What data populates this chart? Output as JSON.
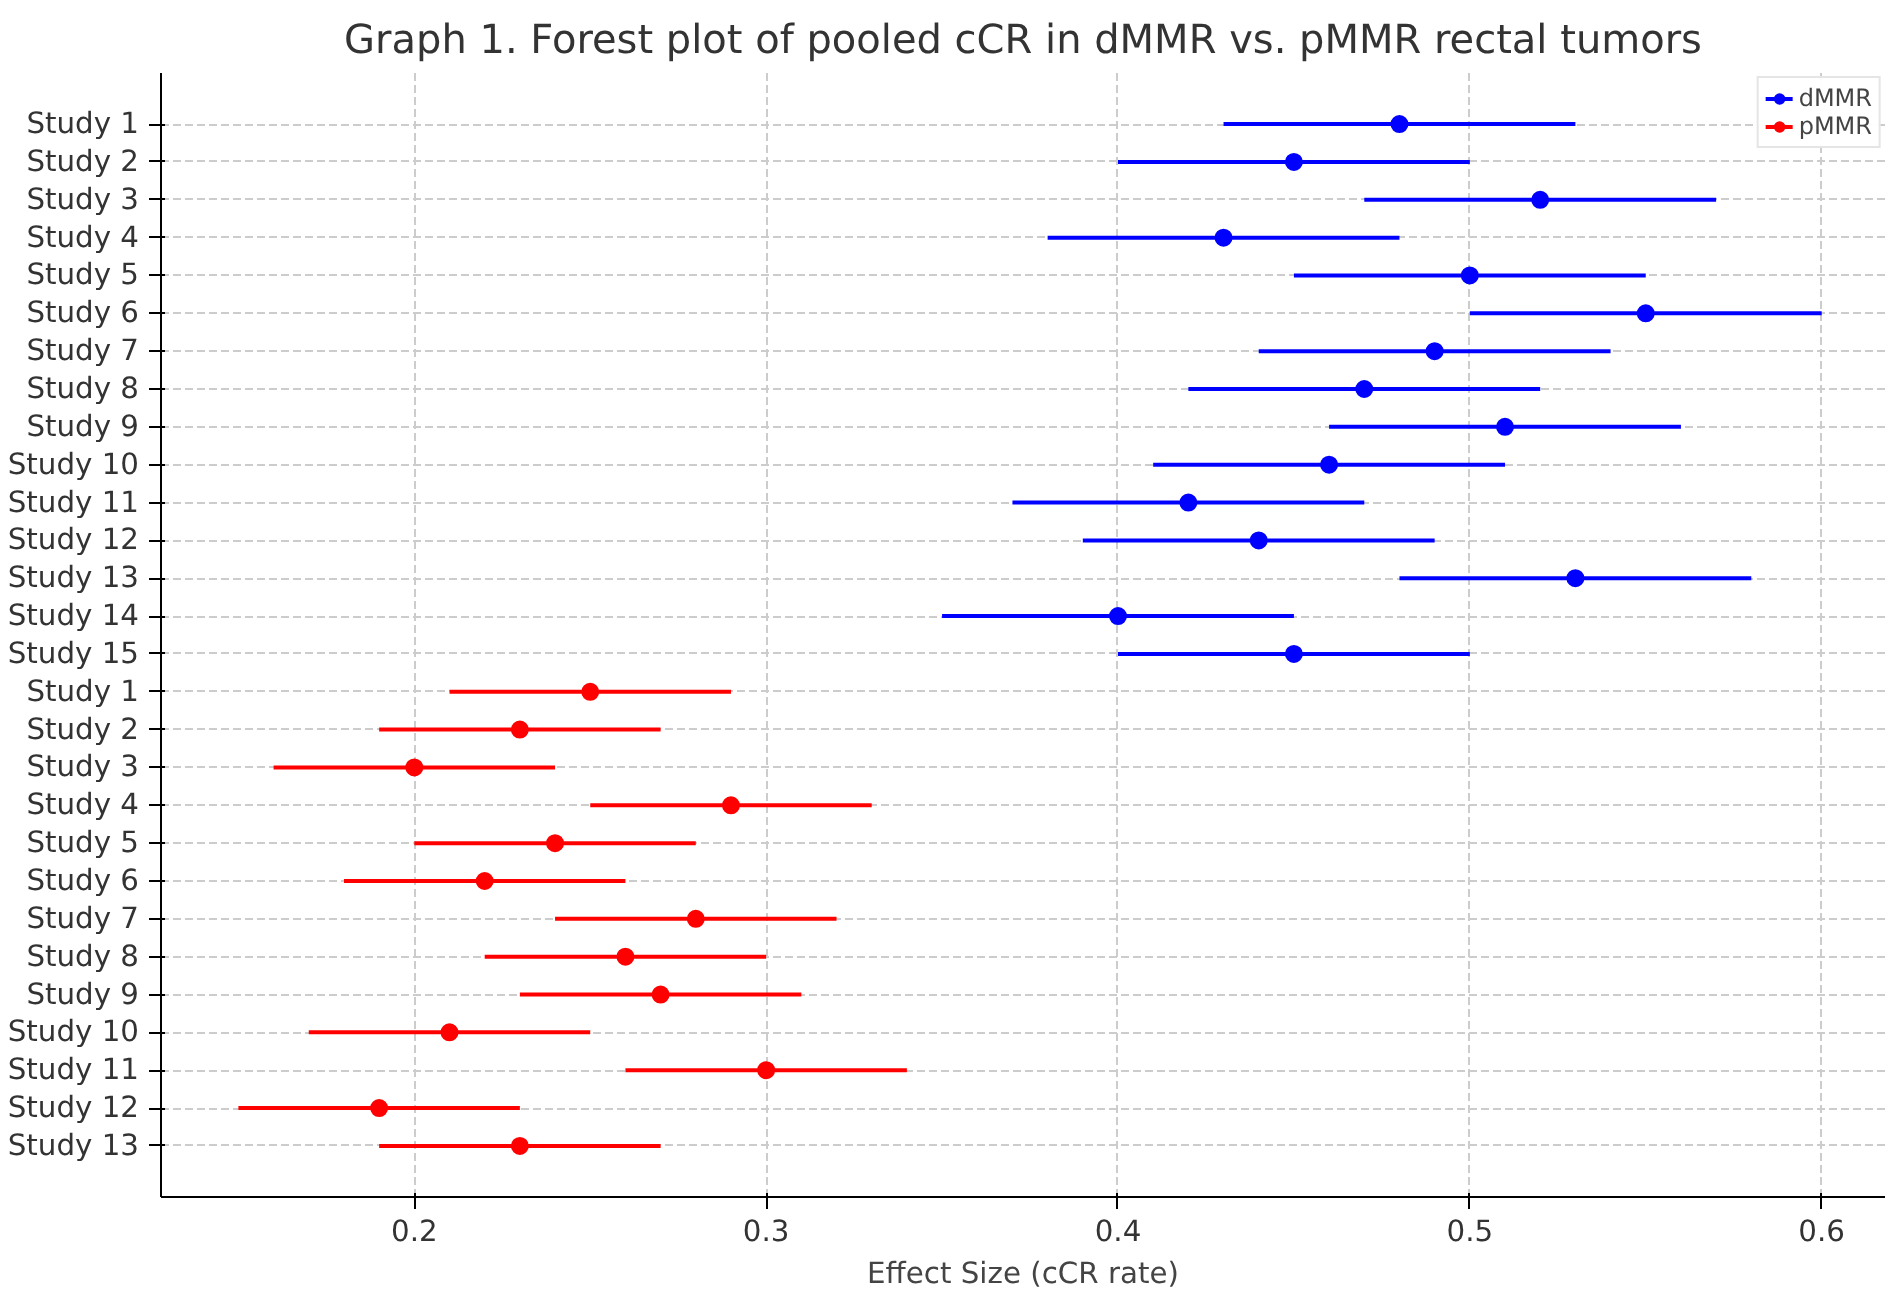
{
  "chart_data": {
    "type": "scatter",
    "orientation": "horizontal",
    "title": "Graph 1. Forest plot of pooled cCR in dMMR vs. pMMR rectal tumors",
    "xlabel": "Effect Size (cCR rate)",
    "categories": [
      "Study 1",
      "Study 2",
      "Study 3",
      "Study 4",
      "Study 5",
      "Study 6",
      "Study 7",
      "Study 8",
      "Study 9",
      "Study 10",
      "Study 11",
      "Study 12",
      "Study 13",
      "Study 14",
      "Study 15",
      "Study 1",
      "Study 2",
      "Study 3",
      "Study 4",
      "Study 5",
      "Study 6",
      "Study 7",
      "Study 8",
      "Study 9",
      "Study 10",
      "Study 11",
      "Study 12",
      "Study 13"
    ],
    "series": [
      {
        "name": "dMMR",
        "color": "#0000ff",
        "values": [
          0.48,
          0.45,
          0.52,
          0.43,
          0.5,
          0.55,
          0.49,
          0.47,
          0.51,
          0.46,
          0.42,
          0.44,
          0.53,
          0.4,
          0.45,
          null,
          null,
          null,
          null,
          null,
          null,
          null,
          null,
          null,
          null,
          null,
          null,
          null
        ],
        "errors": [
          0.05,
          0.05,
          0.05,
          0.05,
          0.05,
          0.05,
          0.05,
          0.05,
          0.05,
          0.05,
          0.05,
          0.05,
          0.05,
          0.05,
          0.05,
          null,
          null,
          null,
          null,
          null,
          null,
          null,
          null,
          null,
          null,
          null,
          null,
          null
        ]
      },
      {
        "name": "pMMR",
        "color": "#ff0000",
        "values": [
          null,
          null,
          null,
          null,
          null,
          null,
          null,
          null,
          null,
          null,
          null,
          null,
          null,
          null,
          null,
          0.25,
          0.23,
          0.2,
          0.29,
          0.24,
          0.22,
          0.28,
          0.26,
          0.27,
          0.21,
          0.3,
          0.19,
          0.23
        ],
        "errors": [
          null,
          null,
          null,
          null,
          null,
          null,
          null,
          null,
          null,
          null,
          null,
          null,
          null,
          null,
          null,
          0.04,
          0.04,
          0.04,
          0.04,
          0.04,
          0.04,
          0.04,
          0.04,
          0.04,
          0.04,
          0.04,
          0.04,
          0.04
        ]
      }
    ],
    "xlim": [
      0.128,
      0.618
    ],
    "xticks": [
      0.2,
      0.3,
      0.4,
      0.5,
      0.6
    ],
    "grid": true,
    "legend": "top right",
    "marker": "circle"
  }
}
